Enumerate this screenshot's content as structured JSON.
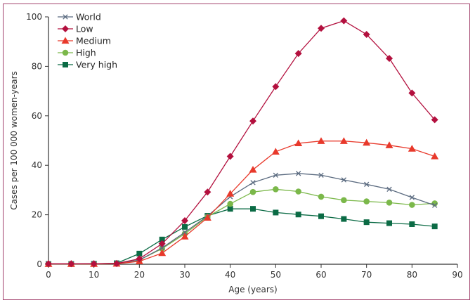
{
  "chart_data": {
    "type": "line",
    "title": "",
    "xlabel": "Age (years)",
    "ylabel": "Cases per 100 000 women-years",
    "xlim": [
      0,
      90
    ],
    "ylim": [
      0,
      100
    ],
    "xticks": [
      0,
      10,
      20,
      30,
      40,
      50,
      60,
      70,
      80,
      90
    ],
    "yticks": [
      0,
      20,
      40,
      60,
      80,
      100
    ],
    "grid": false,
    "legend_position": "top-left",
    "x": [
      0,
      5,
      10,
      15,
      20,
      25,
      30,
      35,
      40,
      45,
      50,
      55,
      60,
      65,
      70,
      75,
      80,
      85
    ],
    "series": [
      {
        "name": "World",
        "marker": "x",
        "color": "#5b6b80",
        "values": [
          0.1,
          0.1,
          0.2,
          0.3,
          1.7,
          6.6,
          12.9,
          19.5,
          27.3,
          33.0,
          36.0,
          36.7,
          36.0,
          34.1,
          32.3,
          30.3,
          27.0,
          23.8
        ]
      },
      {
        "name": "Low",
        "marker": "diamond",
        "color": "#b3103e",
        "values": [
          0.2,
          0.2,
          0.2,
          0.3,
          2.2,
          8.3,
          17.6,
          29.2,
          43.6,
          57.9,
          71.8,
          85.2,
          95.4,
          98.4,
          92.9,
          83.2,
          69.2,
          58.4
        ]
      },
      {
        "name": "Medium",
        "marker": "triangle",
        "color": "#e8392b",
        "values": [
          0.1,
          0.1,
          0.1,
          0.2,
          1.2,
          4.5,
          11.2,
          18.8,
          28.5,
          38.2,
          45.5,
          48.9,
          49.8,
          49.8,
          49.1,
          48.1,
          46.7,
          43.6
        ]
      },
      {
        "name": "High",
        "marker": "circle",
        "color": "#7bb84a",
        "values": [
          0.1,
          0.1,
          0.1,
          0.2,
          1.7,
          6.3,
          12.3,
          19.2,
          24.4,
          29.2,
          30.3,
          29.4,
          27.3,
          25.9,
          25.4,
          24.9,
          24.0,
          24.6
        ]
      },
      {
        "name": "Very high",
        "marker": "square",
        "color": "#0b6b45",
        "values": [
          0.1,
          0.1,
          0.2,
          0.4,
          4.3,
          10.0,
          15.1,
          19.6,
          22.4,
          22.4,
          20.9,
          20.1,
          19.4,
          18.3,
          17.0,
          16.6,
          16.2,
          15.3
        ]
      }
    ]
  }
}
